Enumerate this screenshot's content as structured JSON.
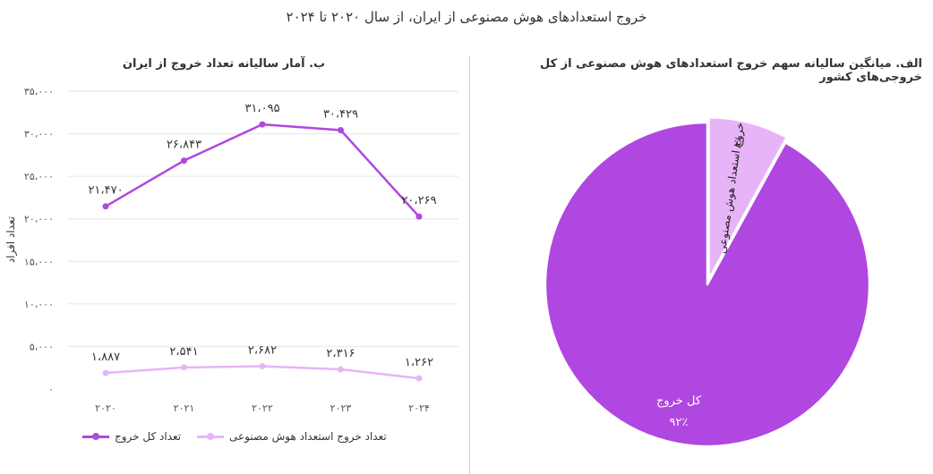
{
  "main_title": "خروج استعدادهای هوش مصنوعی از ایران، از سال ۲۰۲۰ تا ۲۰۲۴",
  "colors": {
    "total": "#b047e0",
    "ai": "#e7b5f7",
    "pie_border": "#ffffff",
    "grid": "#e6e6e6"
  },
  "chart_data": [
    {
      "type": "line",
      "title": "ب. آمار سالیانه تعداد خروج از ایران",
      "ylabel": "تعداد افراد",
      "ylim": [
        0,
        35000
      ],
      "y_ticks": [
        "۰",
        "۵،۰۰۰",
        "۱۰،۰۰۰",
        "۱۵،۰۰۰",
        "۲۰،۰۰۰",
        "۲۵،۰۰۰",
        "۳۰،۰۰۰",
        "۳۵،۰۰۰"
      ],
      "categories": [
        "۲۰۲۰",
        "۲۰۲۱",
        "۲۰۲۲",
        "۲۰۲۳",
        "۲۰۲۴"
      ],
      "grid": true,
      "legend": "bottom",
      "series": [
        {
          "name": "تعداد کل خروج",
          "values": [
            21470,
            26843,
            31095,
            30429,
            20269
          ],
          "labels": [
            "۲۱،۴۷۰",
            "۲۶،۸۴۳",
            "۳۱،۰۹۵",
            "۳۰،۴۲۹",
            "۲۰،۲۶۹"
          ]
        },
        {
          "name": "تعداد خروج استعداد هوش مصنوعی",
          "values": [
            1887,
            2541,
            2682,
            2316,
            1262
          ],
          "labels": [
            "۱،۸۸۷",
            "۲،۵۴۱",
            "۲،۶۸۲",
            "۲،۳۱۶",
            "۱،۲۶۲"
          ]
        }
      ]
    },
    {
      "type": "pie",
      "title": "الف. میانگین سالیانه سهم خروج استعدادهای هوش مصنوعی از کل خروجی‌های کشور",
      "slices": [
        {
          "name": "خروج استعداد هوش مصنوعی",
          "value": 8,
          "label": "۸٪"
        },
        {
          "name": "کل خروج",
          "value": 92,
          "label": "۹۲٪"
        }
      ]
    }
  ]
}
